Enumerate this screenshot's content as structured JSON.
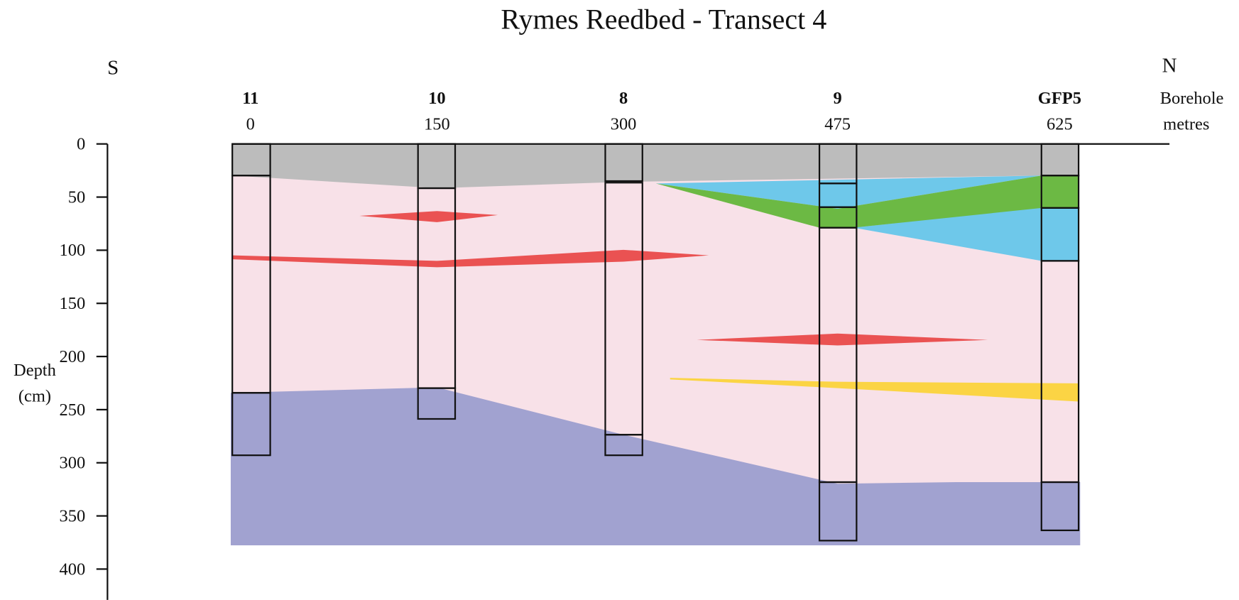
{
  "title": "Rymes Reedbed - Transect 4",
  "directions": {
    "left": "S",
    "right": "N"
  },
  "row_labels": {
    "borehole": "Borehole",
    "metres": "metres"
  },
  "boreholes": [
    {
      "id": "11",
      "metres": 0
    },
    {
      "id": "10",
      "metres": 150
    },
    {
      "id": "8",
      "metres": 300
    },
    {
      "id": "9",
      "metres": 475
    },
    {
      "id": "GFP5",
      "metres": 625
    }
  ],
  "depth_axis": {
    "label": "Depth",
    "unit": "(cm)",
    "ylim": [
      0,
      429
    ],
    "yticks": [
      0,
      50,
      100,
      150,
      200,
      250,
      300,
      350,
      400
    ]
  }
}
